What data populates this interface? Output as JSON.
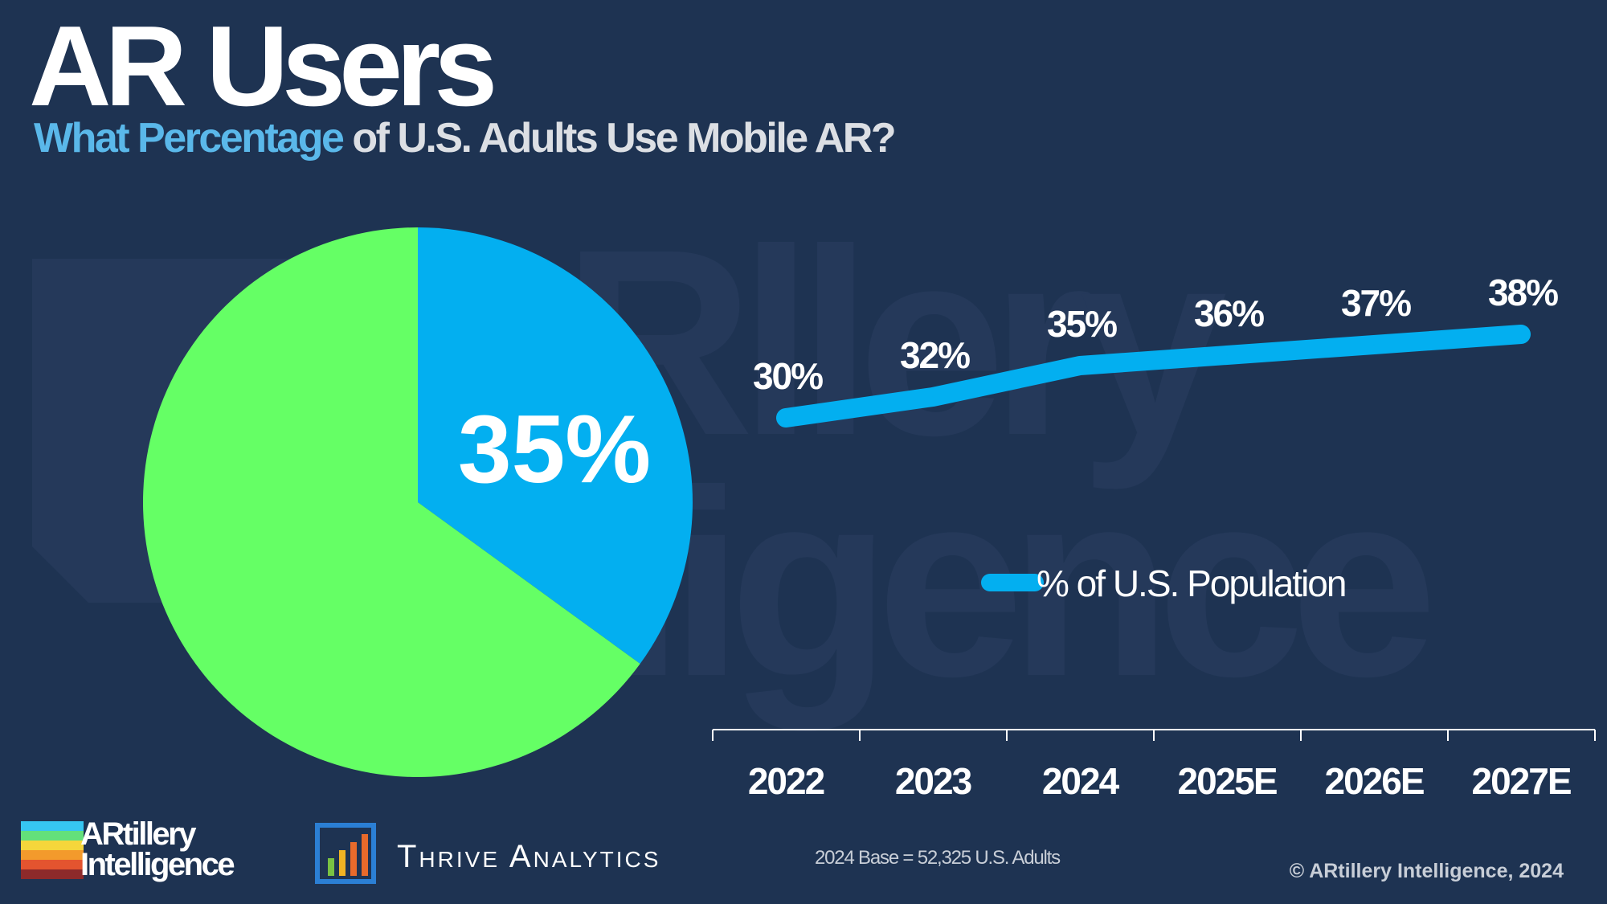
{
  "title": "AR Users",
  "subtitle": {
    "highlight": "What Percentage",
    "rest": " of U.S. Adults Use Mobile AR?"
  },
  "colors": {
    "background": "#1e3352",
    "pie_highlight": "#03aff0",
    "pie_rest": "#65ff65",
    "line": "#03aff0",
    "subtitle_highlight": "#5ab8ea"
  },
  "chart_data": [
    {
      "type": "pie",
      "slices": [
        {
          "label": "35%",
          "value": 35,
          "color": "#03aff0"
        },
        {
          "label": "",
          "value": 65,
          "color": "#65ff65"
        }
      ],
      "center_label": "35%"
    },
    {
      "type": "line",
      "categories": [
        "2022",
        "2023",
        "2024",
        "2025E",
        "2026E",
        "2027E"
      ],
      "series": [
        {
          "name": "% of U.S. Population",
          "values": [
            30,
            32,
            35,
            36,
            37,
            38
          ],
          "labels": [
            "30%",
            "32%",
            "35%",
            "36%",
            "37%",
            "38%"
          ],
          "color": "#03aff0"
        }
      ],
      "legend": "center-right",
      "grid": false
    }
  ],
  "footer": {
    "logo_line1": "ARtillery",
    "logo_line2": "Intelligence",
    "partner": "Thrive Analytics",
    "base_note": "2024 Base = 52,325 U.S. Adults",
    "copyright": "© ARtillery Intelligence, 2024"
  }
}
